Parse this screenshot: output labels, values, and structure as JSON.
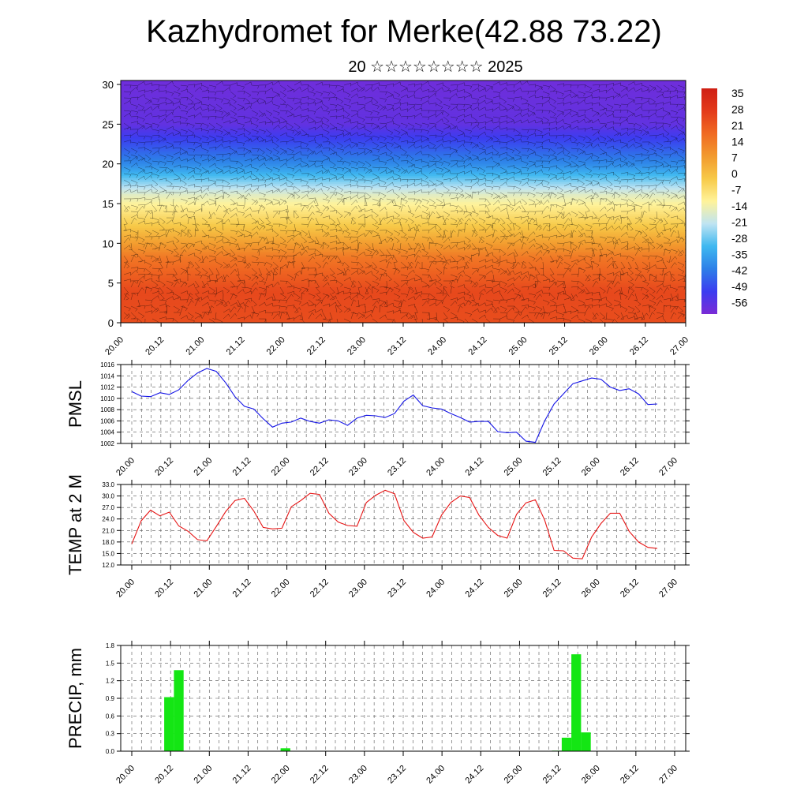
{
  "title": "Kazhydromet for Merke(42.88 73.22)",
  "subtitle": "20 ☆☆☆☆☆☆☆☆ 2025",
  "time_labels": [
    "20.00",
    "20.12",
    "21.00",
    "21.12",
    "22.00",
    "22.12",
    "23.00",
    "23.12",
    "24.00",
    "24.12",
    "25.00",
    "25.12",
    "26.00",
    "26.12",
    "27.00"
  ],
  "chart_data": [
    {
      "type": "heatmap",
      "name": "cross-section",
      "x": [
        "20.00",
        "20.12",
        "21.00",
        "21.12",
        "22.00",
        "22.12",
        "23.00",
        "23.12",
        "24.00",
        "24.12",
        "25.00",
        "25.12",
        "26.00",
        "26.12",
        "27.00"
      ],
      "y_ticks": [
        0,
        5,
        10,
        15,
        20,
        25,
        30
      ],
      "ylim": [
        0,
        30.5
      ],
      "colorbar_ticks": [
        "35",
        "28",
        "21",
        "14",
        "7",
        "0",
        "-7",
        "-14",
        "-21",
        "-28",
        "-35",
        "-42",
        "-49",
        "-56"
      ],
      "colorbar_range": [
        -60,
        40
      ],
      "colormap": [
        "#7a2bd6",
        "#3c3cf0",
        "#2d7fe8",
        "#3fb8f0",
        "#bfe4f2",
        "#fff39a",
        "#f7c948",
        "#f29a2e",
        "#f06a22",
        "#e33a1a",
        "#cf1e14"
      ],
      "level_temperature": [
        [
          0,
          26
        ],
        [
          4,
          27
        ],
        [
          8,
          18
        ],
        [
          12,
          1
        ],
        [
          16,
          -14
        ],
        [
          20,
          -38
        ],
        [
          25,
          -56
        ],
        [
          30,
          -58
        ]
      ]
    },
    {
      "type": "line",
      "name": "pmsl",
      "ylabel": "PMSL",
      "ylim": [
        1002,
        1016
      ],
      "y_ticks": [
        1002,
        1004,
        1006,
        1008,
        1010,
        1012,
        1014,
        1016
      ],
      "color": "#1414e6",
      "x_step_hours": 3,
      "values": [
        1011.2,
        1010.4,
        1010.3,
        1011.0,
        1010.7,
        1011.5,
        1013.2,
        1014.5,
        1015.3,
        1014.8,
        1012.8,
        1010.3,
        1008.6,
        1008.1,
        1006.4,
        1004.9,
        1005.6,
        1005.8,
        1006.5,
        1005.9,
        1005.6,
        1006.2,
        1006.0,
        1005.2,
        1006.5,
        1007.0,
        1006.9,
        1006.6,
        1007.3,
        1009.5,
        1010.6,
        1008.7,
        1008.3,
        1008.1,
        1007.3,
        1006.6,
        1005.8,
        1005.9,
        1005.9,
        1004.1,
        1003.9,
        1004.0,
        1002.4,
        1002.2,
        1006.0,
        1009.0,
        1010.8,
        1012.6,
        1013.1,
        1013.6,
        1013.4,
        1012.0,
        1011.4,
        1011.7,
        1010.8,
        1008.9,
        1009.0
      ]
    },
    {
      "type": "line",
      "name": "temp2m",
      "ylabel": "TEMP at 2 M",
      "ylim": [
        12,
        33
      ],
      "y_ticks": [
        "12.0",
        "15.0",
        "18.0",
        "21.0",
        "24.0",
        "27.0",
        "30.0",
        "33.0"
      ],
      "color": "#e61414",
      "x_step_hours": 3,
      "values": [
        17.5,
        23.5,
        26.3,
        24.8,
        25.8,
        22.2,
        20.8,
        18.6,
        18.3,
        22.0,
        25.9,
        28.8,
        29.4,
        26.1,
        21.8,
        21.4,
        21.6,
        27.2,
        28.8,
        30.7,
        30.4,
        25.5,
        23.2,
        22.3,
        22.1,
        28.3,
        30.2,
        31.5,
        30.6,
        23.6,
        20.5,
        19.0,
        19.3,
        25.0,
        28.3,
        30.0,
        29.6,
        25.0,
        21.8,
        19.7,
        19.0,
        25.2,
        28.2,
        29.0,
        23.7,
        15.8,
        15.7,
        13.8,
        13.6,
        19.3,
        22.8,
        25.5,
        25.5,
        20.8,
        18.0,
        16.6,
        16.3
      ]
    },
    {
      "type": "bar",
      "name": "precip",
      "ylabel": "PRECIP, mm",
      "ylim": [
        0,
        1.8
      ],
      "y_ticks": [
        "0.0",
        "0.3",
        "0.6",
        "0.9",
        "1.2",
        "1.5",
        "1.8"
      ],
      "color": "#14e614",
      "x_step_hours": 3,
      "values": [
        0,
        0,
        0,
        0,
        0.92,
        1.38,
        0,
        0,
        0,
        0,
        0,
        0,
        0,
        0,
        0,
        0,
        0.05,
        0,
        0,
        0,
        0,
        0,
        0,
        0,
        0,
        0,
        0,
        0,
        0,
        0,
        0,
        0,
        0,
        0,
        0,
        0,
        0,
        0,
        0,
        0,
        0,
        0,
        0,
        0,
        0.01,
        0.23,
        1.65,
        0.32,
        0,
        0,
        0,
        0,
        0,
        0,
        0,
        0
      ]
    }
  ]
}
